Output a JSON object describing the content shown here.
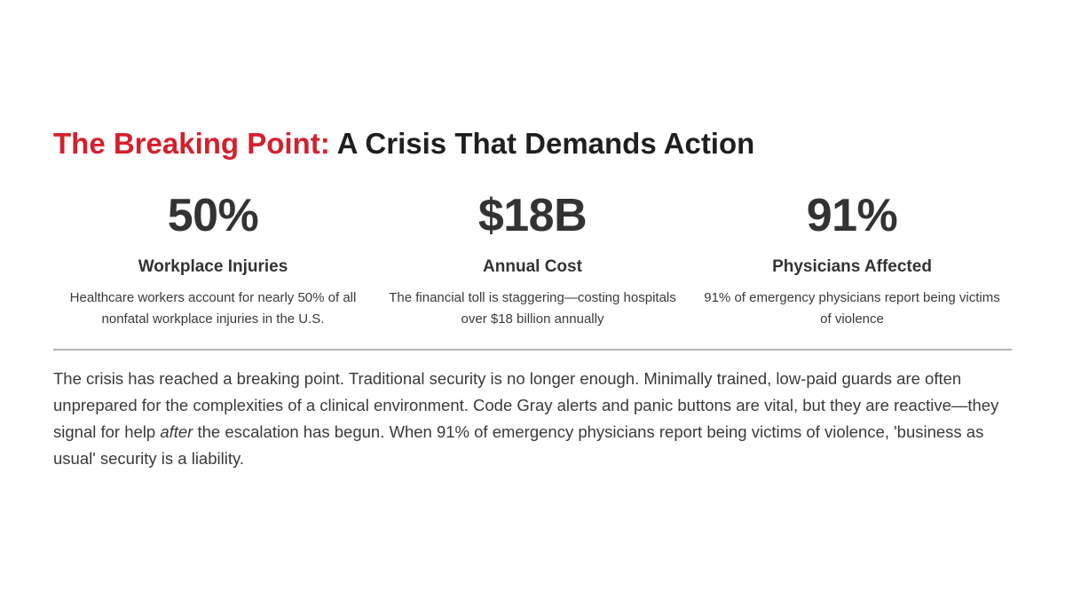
{
  "title": {
    "accent": "The Breaking Point:",
    "rest": "A Crisis That Demands Action"
  },
  "stats": [
    {
      "value": "50%",
      "label": "Workplace Injuries",
      "description": "Healthcare workers account for nearly 50% of all nonfatal workplace injuries in the U.S."
    },
    {
      "value": "$18B",
      "label": "Annual Cost",
      "description": "The financial toll is staggering—costing hospitals over $18 billion annually"
    },
    {
      "value": "91%",
      "label": "Physicians Affected",
      "description": "91% of emergency physicians report being victims of violence"
    }
  ],
  "body": {
    "before_emphasis": "The crisis has reached a breaking point. Traditional security is no longer enough. Minimally trained, low-paid guards are often unprepared for the complexities of a clinical environment. Code Gray alerts and panic buttons are vital, but they are reactive—they signal for help ",
    "emphasis": "after",
    "after_emphasis": " the escalation has begun. When 91% of emergency physicians report being victims of violence, 'business as usual' security is a liability."
  },
  "colors": {
    "accent": "#d61f2c",
    "text": "#333333",
    "divider": "#b3b3b3"
  }
}
